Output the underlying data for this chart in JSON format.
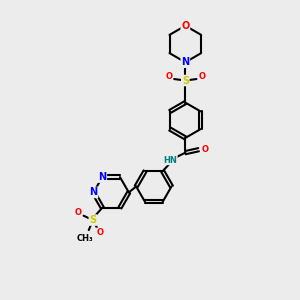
{
  "bg_color": "#ececec",
  "atom_colors": {
    "C": "#000000",
    "N": "#0000ff",
    "O": "#ff0000",
    "S": "#cccc00",
    "H": "#008080"
  },
  "bond_color": "#000000",
  "bond_width": 1.5,
  "font_size_atoms": 7,
  "font_size_small": 6
}
